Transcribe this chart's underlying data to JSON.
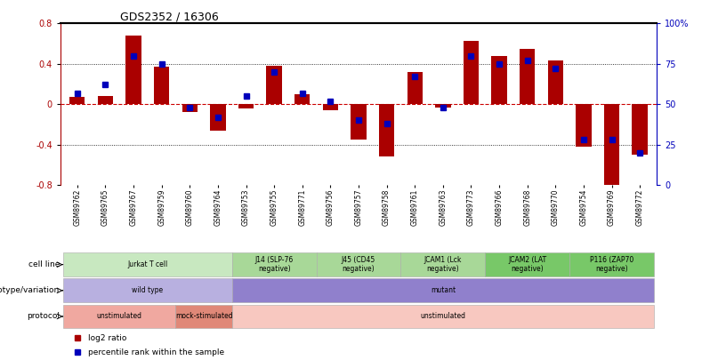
{
  "title": "GDS2352 / 16306",
  "samples": [
    "GSM89762",
    "GSM89765",
    "GSM89767",
    "GSM89759",
    "GSM89760",
    "GSM89764",
    "GSM89753",
    "GSM89755",
    "GSM89771",
    "GSM89756",
    "GSM89757",
    "GSM89758",
    "GSM89761",
    "GSM89763",
    "GSM89773",
    "GSM89766",
    "GSM89768",
    "GSM89770",
    "GSM89754",
    "GSM89769",
    "GSM89772"
  ],
  "log2_ratio": [
    0.07,
    0.08,
    0.68,
    0.37,
    -0.08,
    -0.26,
    -0.04,
    0.38,
    0.1,
    -0.06,
    -0.35,
    -0.52,
    0.32,
    -0.03,
    0.63,
    0.48,
    0.55,
    0.43,
    -0.42,
    -0.82,
    -0.5
  ],
  "percentile": [
    57,
    62,
    80,
    75,
    48,
    42,
    55,
    70,
    57,
    52,
    40,
    38,
    67,
    48,
    80,
    75,
    77,
    72,
    28,
    28,
    20
  ],
  "ylim_left": [
    -0.8,
    0.8
  ],
  "ylim_right": [
    0,
    100
  ],
  "bar_color": "#aa0000",
  "dot_color": "#0000bb",
  "zero_line_color": "#cc0000",
  "cell_line_groups": [
    {
      "label": "Jurkat T cell",
      "start": 0,
      "end": 6,
      "color": "#c8e8c0"
    },
    {
      "label": "J14 (SLP-76\nnegative)",
      "start": 6,
      "end": 9,
      "color": "#a8d898"
    },
    {
      "label": "J45 (CD45\nnegative)",
      "start": 9,
      "end": 12,
      "color": "#a8d898"
    },
    {
      "label": "JCAM1 (Lck\nnegative)",
      "start": 12,
      "end": 15,
      "color": "#a8d898"
    },
    {
      "label": "JCAM2 (LAT\nnegative)",
      "start": 15,
      "end": 18,
      "color": "#78c868"
    },
    {
      "label": "P116 (ZAP70\nnegative)",
      "start": 18,
      "end": 21,
      "color": "#78c868"
    }
  ],
  "genotype_groups": [
    {
      "label": "wild type",
      "start": 0,
      "end": 6,
      "color": "#b8b0e0"
    },
    {
      "label": "mutant",
      "start": 6,
      "end": 21,
      "color": "#9080cc"
    }
  ],
  "protocol_groups": [
    {
      "label": "unstimulated",
      "start": 0,
      "end": 4,
      "color": "#f0a8a0"
    },
    {
      "label": "mock-stimulated",
      "start": 4,
      "end": 6,
      "color": "#e08878"
    },
    {
      "label": "unstimulated",
      "start": 6,
      "end": 21,
      "color": "#f8c8c0"
    }
  ],
  "row_labels": [
    "cell line",
    "genotype/variation",
    "protocol"
  ],
  "legend_bar_label": "log2 ratio",
  "legend_dot_label": "percentile rank within the sample"
}
